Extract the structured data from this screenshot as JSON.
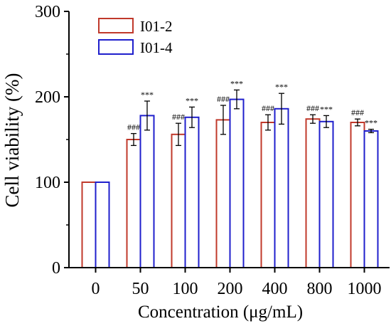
{
  "chart_data": {
    "type": "bar",
    "xlabel": "Concentration (μg/mL)",
    "ylabel": "Cell viability (%)",
    "ylim": [
      0,
      300
    ],
    "yticks": [
      "0",
      "100",
      "200",
      "300"
    ],
    "categories": [
      "0",
      "50",
      "100",
      "200",
      "400",
      "800",
      "1000"
    ],
    "legend_position": "top-left",
    "series": [
      {
        "name": "I01-2",
        "color": "#c0392b",
        "values": [
          100,
          150,
          156,
          173,
          170,
          174,
          170
        ],
        "errors": [
          0,
          7,
          13,
          17,
          9,
          5,
          4
        ],
        "annotations": [
          "",
          "###",
          "###",
          "###",
          "###",
          "###",
          "###"
        ]
      },
      {
        "name": "I01-4",
        "color": "#1f1fcc",
        "values": [
          100,
          178,
          176,
          197,
          186,
          171,
          160
        ],
        "errors": [
          0,
          17,
          12,
          11,
          18,
          7,
          2
        ],
        "annotations": [
          "",
          "***",
          "***",
          "***",
          "***",
          "***",
          "***"
        ]
      }
    ]
  }
}
